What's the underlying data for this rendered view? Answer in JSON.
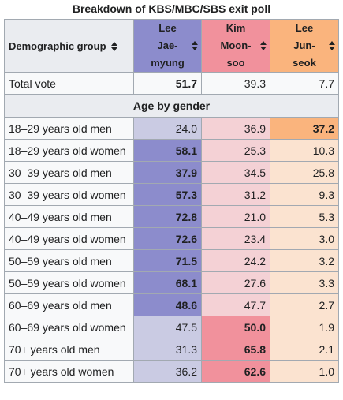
{
  "caption": "Breakdown of KBS/MBC/SBS exit poll",
  "header": {
    "group_label": "Demographic group",
    "candidates": [
      {
        "lines": [
          "Lee",
          "Jae-",
          "myung"
        ],
        "color": "#8c8ccc",
        "light": "#cacbe3"
      },
      {
        "lines": [
          "Kim",
          "Moon-",
          "soo"
        ],
        "color": "#f1919c",
        "light": "#f4d1d5"
      },
      {
        "lines": [
          "Lee",
          "Jun-",
          "seok"
        ],
        "color": "#fab47d",
        "light": "#fbe3d0"
      }
    ]
  },
  "rows_before": [
    {
      "label": "Total vote",
      "values": [
        "51.7",
        "39.3",
        "7.7"
      ],
      "winner": 0,
      "style": "plain"
    }
  ],
  "section_label": "Age by gender",
  "rows": [
    {
      "label": "18–29 years old men",
      "values": [
        "24.0",
        "36.9",
        "37.2"
      ],
      "winner": 2
    },
    {
      "label": "18–29 years old women",
      "values": [
        "58.1",
        "25.3",
        "10.3"
      ],
      "winner": 0
    },
    {
      "label": "30–39 years old men",
      "values": [
        "37.9",
        "34.5",
        "25.8"
      ],
      "winner": 0
    },
    {
      "label": "30–39 years old women",
      "values": [
        "57.3",
        "31.2",
        "9.3"
      ],
      "winner": 0
    },
    {
      "label": "40–49 years old men",
      "values": [
        "72.8",
        "21.0",
        "5.3"
      ],
      "winner": 0
    },
    {
      "label": "40–49 years old women",
      "values": [
        "72.6",
        "23.4",
        "3.0"
      ],
      "winner": 0
    },
    {
      "label": "50–59 years old men",
      "values": [
        "71.5",
        "24.2",
        "3.2"
      ],
      "winner": 0
    },
    {
      "label": "50–59 years old women",
      "values": [
        "68.1",
        "27.6",
        "3.3"
      ],
      "winner": 0
    },
    {
      "label": "60–69 years old men",
      "values": [
        "48.6",
        "47.7",
        "2.7"
      ],
      "winner": 0
    },
    {
      "label": "60–69 years old women",
      "values": [
        "47.5",
        "50.0",
        "1.9"
      ],
      "winner": 1
    },
    {
      "label": "70+ years old men",
      "values": [
        "31.3",
        "65.8",
        "2.1"
      ],
      "winner": 1
    },
    {
      "label": "70+ years old women",
      "values": [
        "36.2",
        "62.6",
        "1.0"
      ],
      "winner": 1
    }
  ]
}
